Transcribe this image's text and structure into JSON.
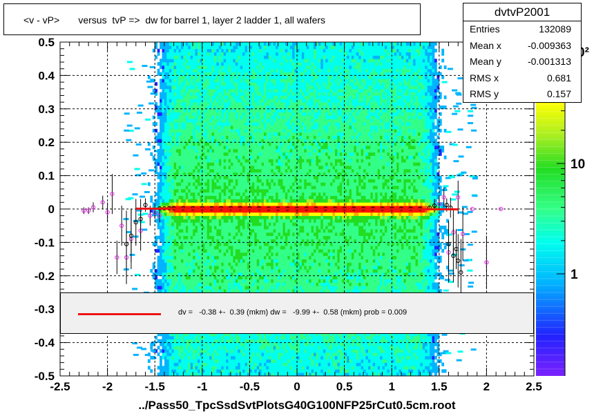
{
  "title": "<v - vP>       versus  tvP =>  dw for barrel 1, layer 2 ladder 1, all wafers",
  "stats": {
    "name": "dvtvP2001",
    "rows": [
      {
        "key": "Entries",
        "value": "132089"
      },
      {
        "key": "Mean x",
        "value": "-0.009363"
      },
      {
        "key": "Mean y",
        "value": "-0.001313"
      },
      {
        "key": "RMS x",
        "value": "0.681"
      },
      {
        "key": "RMS y",
        "value": "0.157"
      }
    ]
  },
  "fit_text": "dv =   -0.38 +-  0.39 (mkm) dw =   -9.99 +-  0.58 (mkm) prob = 0.009",
  "xlabel": "../Pass50_TpcSsdSvtPlotsG40G100NFP25rCut0.5cm.root",
  "colors": {
    "fit_line": "#ee1111",
    "profile_marker": "#ee22ee"
  },
  "chart_data": {
    "type": "heatmap",
    "xlim": [
      -2.5,
      2.5
    ],
    "ylim": [
      -0.5,
      0.5
    ],
    "x_ticks": [
      "-2.5",
      "-2",
      "-1.5",
      "-1",
      "-0.5",
      "0",
      "0.5",
      "1",
      "1.5",
      "2",
      "2.5"
    ],
    "y_ticks": [
      "-0.5",
      "-0.4",
      "-0.3",
      "-0.2",
      "-0.1",
      "0",
      "0.1",
      "0.2",
      "0.3",
      "0.4",
      "0.5"
    ],
    "grid": true,
    "color_scale": "log",
    "z_ticks": [
      "1",
      "10"
    ],
    "z_tick_partial": "0²",
    "fit_line": {
      "x": [
        -1.7,
        1.7
      ],
      "y": [
        0.001,
        -0.001
      ]
    },
    "profile_black": {
      "x": [
        -1.45,
        -1.4,
        -1.35,
        -1.3,
        -1.2,
        -1.1,
        -1.0,
        -0.9,
        -0.8,
        -0.7,
        -0.6,
        -0.5,
        -0.4,
        -0.3,
        -0.2,
        -0.1,
        0.0,
        0.1,
        0.2,
        0.3,
        0.4,
        0.5,
        0.6,
        0.7,
        0.8,
        0.9,
        1.0,
        1.1,
        1.2,
        1.3,
        1.4,
        1.45,
        1.58,
        1.6,
        1.62,
        1.65,
        1.68,
        1.7,
        1.73,
        -1.6,
        -1.65,
        -1.7,
        -1.75,
        -1.8
      ],
      "y": [
        0.002,
        0.002,
        0.002,
        0.002,
        0.002,
        0.002,
        0.002,
        0.002,
        0.002,
        0.002,
        0.002,
        0.002,
        0.002,
        0.001,
        0.001,
        0.001,
        0.001,
        0.001,
        0.001,
        0.001,
        0.001,
        0.001,
        0.001,
        0.001,
        0.001,
        0.001,
        0.001,
        0.001,
        0.001,
        0.001,
        0.004,
        0.01,
        0.012,
        -0.105,
        0.004,
        -0.14,
        -0.12,
        -0.155,
        -0.19,
        0.012,
        -0.03,
        -0.04,
        -0.08,
        -0.105
      ],
      "yerr": [
        0.004,
        0.004,
        0.004,
        0.003,
        0.003,
        0.003,
        0.003,
        0.003,
        0.003,
        0.003,
        0.003,
        0.003,
        0.003,
        0.003,
        0.003,
        0.003,
        0.003,
        0.003,
        0.003,
        0.003,
        0.003,
        0.003,
        0.003,
        0.003,
        0.003,
        0.003,
        0.003,
        0.003,
        0.003,
        0.003,
        0.006,
        0.02,
        0.02,
        0.07,
        0.03,
        0.08,
        0.06,
        0.08,
        0.1,
        0.02,
        0.06,
        0.07,
        0.08,
        0.1
      ]
    },
    "profile_magenta": {
      "x": [
        -2.25,
        -2.2,
        -2.15,
        -2.05,
        -2.0,
        -1.95,
        -1.9,
        -1.85,
        -1.8,
        -1.75,
        -1.65,
        -1.55,
        -1.5,
        -1.45,
        1.45,
        1.5,
        1.55,
        1.6,
        1.65,
        1.7,
        1.75,
        1.85,
        2.0,
        2.15
      ],
      "y": [
        -0.005,
        -0.005,
        0.005,
        0.02,
        -0.01,
        0.045,
        -0.145,
        -0.05,
        -0.145,
        -0.09,
        -0.065,
        -0.02,
        -0.01,
        -0.02,
        0.01,
        0.015,
        0.035,
        -0.13,
        -0.07,
        0.035,
        -0.075,
        0.0,
        -0.16,
        0.0
      ],
      "yerr": [
        0.01,
        0.01,
        0.015,
        0.02,
        0.03,
        0.06,
        0.05,
        0.06,
        0.08,
        0.09,
        0.06,
        0.03,
        0.02,
        0.02,
        0.02,
        0.02,
        0.03,
        0.09,
        0.07,
        0.05,
        0.08,
        0.0,
        0.08,
        0.0
      ]
    }
  }
}
